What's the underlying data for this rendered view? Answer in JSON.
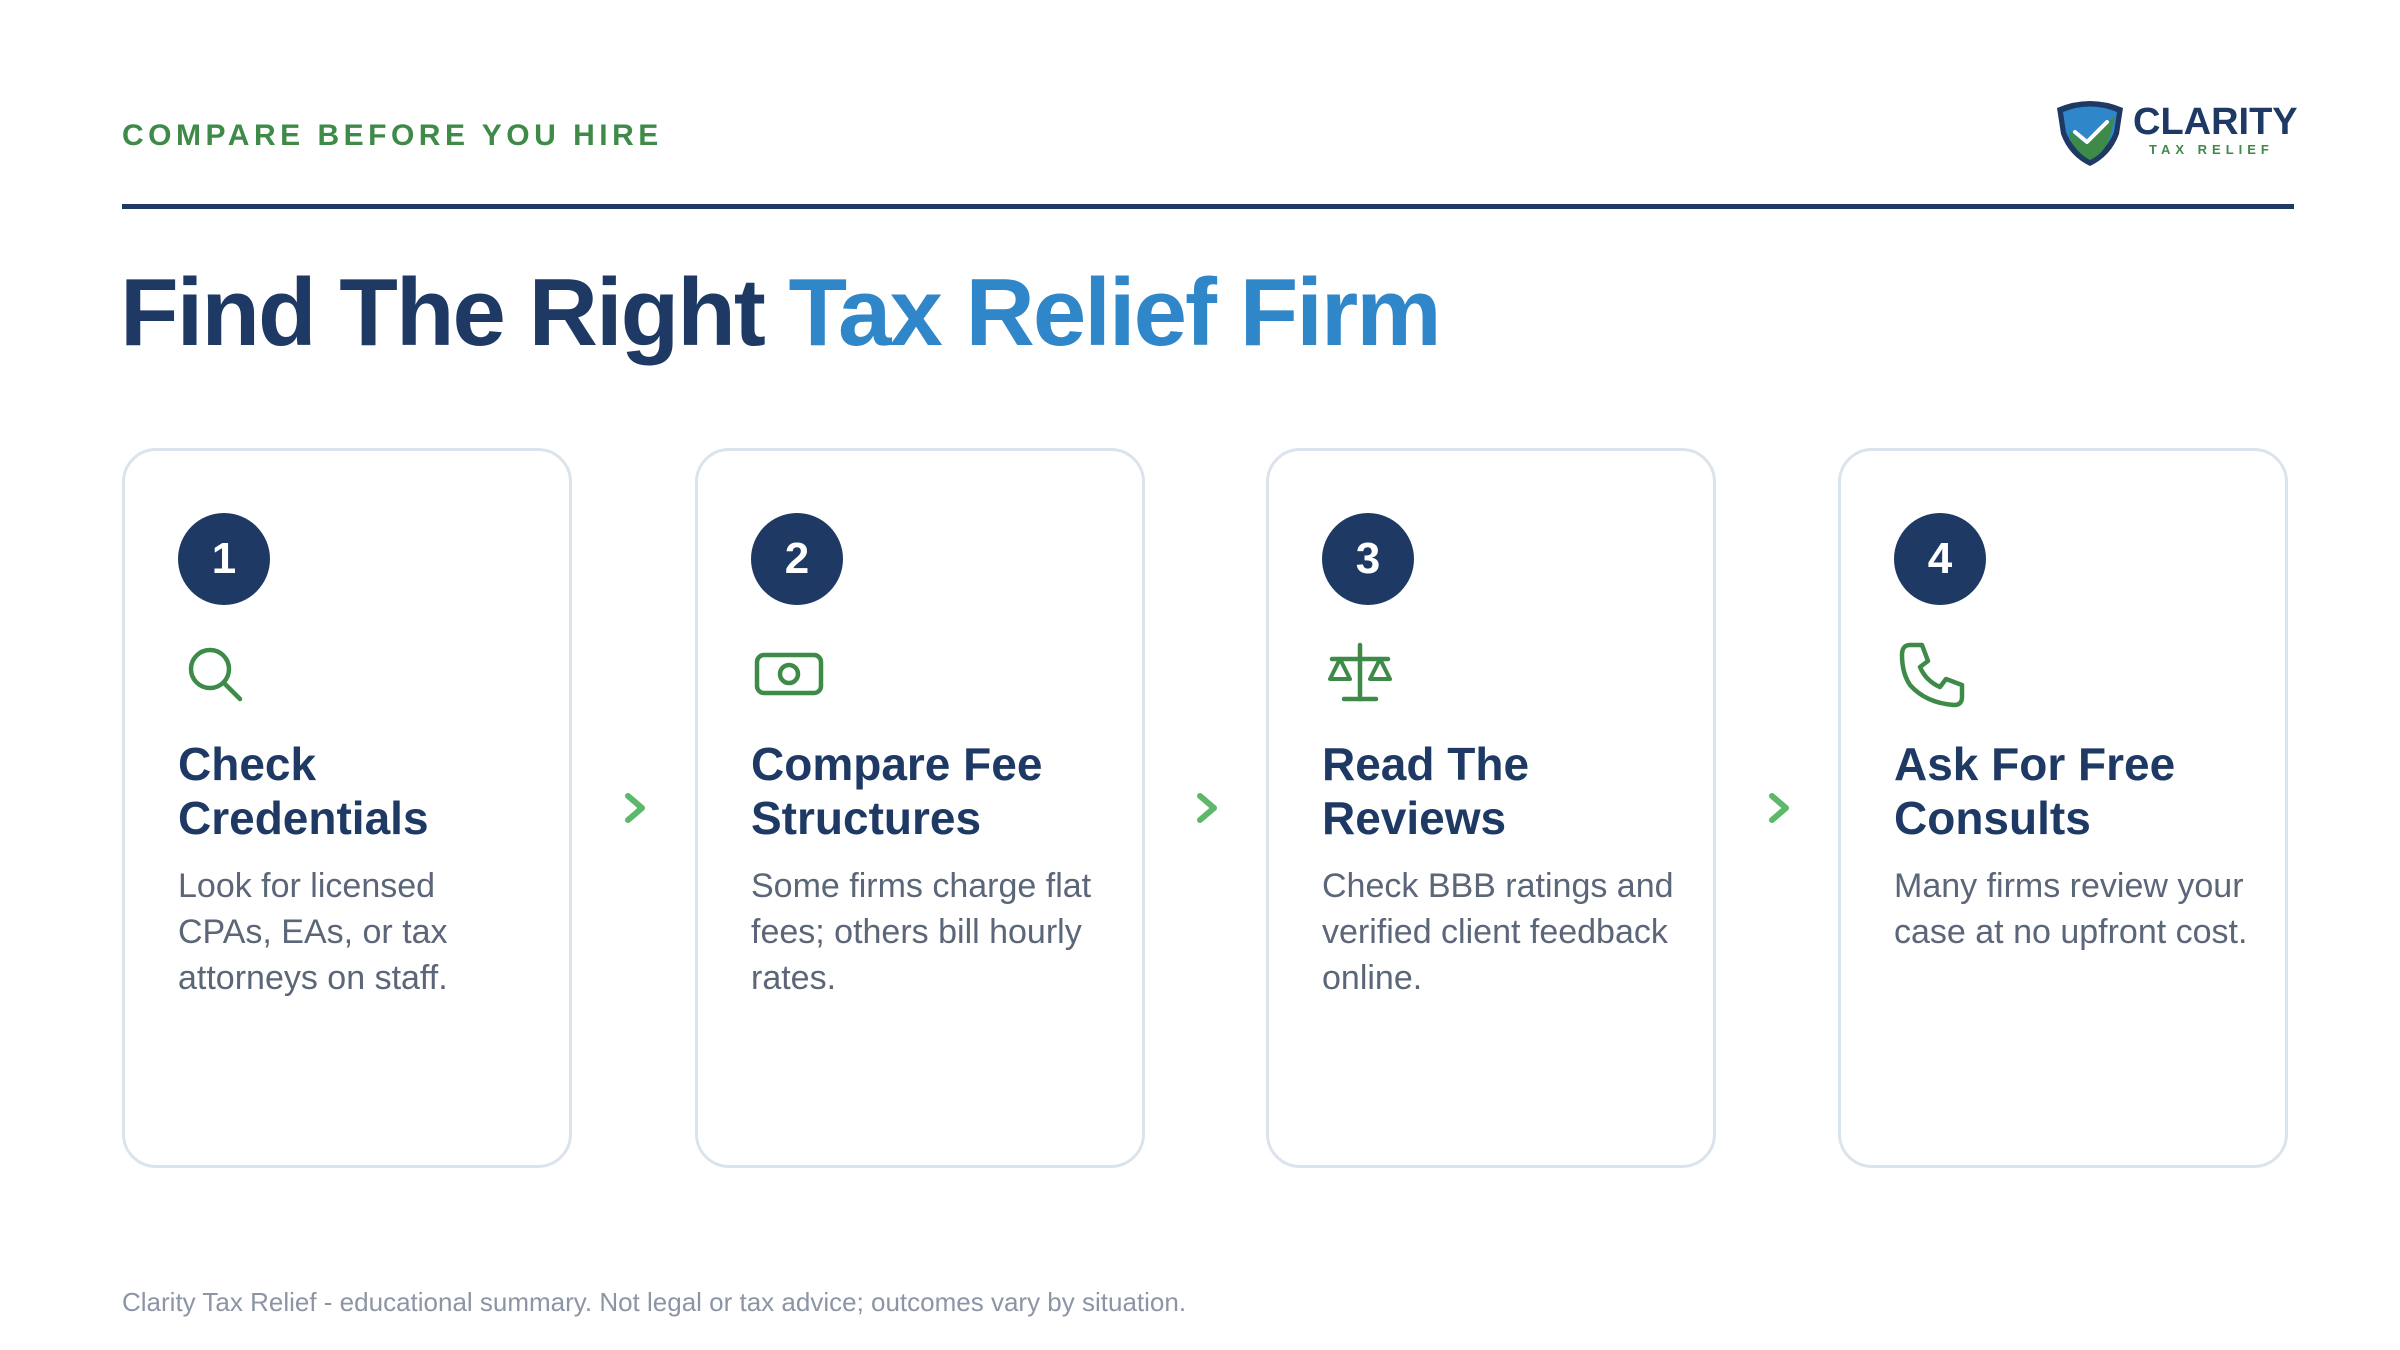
{
  "header": {
    "eyebrow": "COMPARE BEFORE YOU HIRE",
    "logo": {
      "name": "CLARITY",
      "tagline": "TAX RELIEF",
      "icon": "shield-check-icon"
    }
  },
  "title": {
    "part1": "Find The Right",
    "part2": "Tax Relief Firm"
  },
  "steps": [
    {
      "number": "1",
      "icon": "search-icon",
      "title": "Check Credentials",
      "description": "Look for licensed CPAs, EAs, or tax attorneys on staff."
    },
    {
      "number": "2",
      "icon": "cash-icon",
      "title": "Compare Fee Structures",
      "description": "Some firms charge flat fees; others bill hourly rates."
    },
    {
      "number": "3",
      "icon": "scale-icon",
      "title": "Read The Reviews",
      "description": "Check BBB ratings and verified client feedback online."
    },
    {
      "number": "4",
      "icon": "phone-icon",
      "title": "Ask For Free Consults",
      "description": "Many firms review your case at no upfront cost."
    }
  ],
  "footer": "Clarity Tax Relief - educational summary. Not legal or tax advice; outcomes vary by situation.",
  "colors": {
    "navy": "#1e3a64",
    "blue_accent": "#2f86c8",
    "green": "#3e8a48",
    "chevron_green": "#5cb86a",
    "card_border": "#dbe3ec",
    "body_text": "#5b6678",
    "footer_text": "#8b95a5"
  }
}
